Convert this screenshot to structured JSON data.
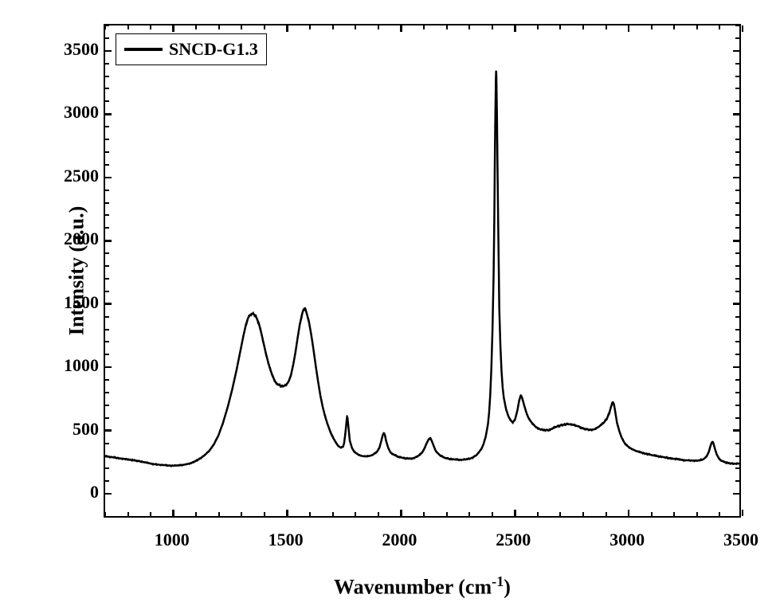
{
  "chart": {
    "type": "line",
    "background_color": "#ffffff",
    "line_color": "#000000",
    "line_width": 2.5,
    "border_color": "#000000",
    "border_width": 2.5,
    "x_axis": {
      "title": "Wavenumber (cm⁻¹)",
      "title_plain": "Wavenumber (cm",
      "title_sup": "-1",
      "title_close": ")",
      "title_fontsize": 26,
      "label_fontsize": 22,
      "min": 700,
      "max": 3500,
      "major_ticks": [
        1000,
        1500,
        2000,
        2500,
        3000,
        3500
      ],
      "minor_tick_step": 100,
      "tick_direction": "in"
    },
    "y_axis": {
      "title": "Intensity (a.u.)",
      "title_fontsize": 26,
      "label_fontsize": 22,
      "min": -200,
      "max": 3700,
      "major_ticks": [
        0,
        500,
        1000,
        1500,
        2000,
        2500,
        3000,
        3500
      ],
      "minor_tick_step": 100,
      "tick_direction": "in"
    },
    "legend": {
      "text": "SNCD-G1.3",
      "fontsize": 22,
      "position": "top-left",
      "line_sample_width": 48,
      "line_sample_thickness": 4,
      "border": true
    },
    "series": [
      {
        "name": "SNCD-G1.3",
        "color": "#000000",
        "data": [
          [
            700,
            275
          ],
          [
            720,
            270
          ],
          [
            740,
            265
          ],
          [
            760,
            260
          ],
          [
            780,
            255
          ],
          [
            800,
            250
          ],
          [
            820,
            245
          ],
          [
            840,
            240
          ],
          [
            860,
            232
          ],
          [
            880,
            225
          ],
          [
            900,
            218
          ],
          [
            920,
            212
          ],
          [
            940,
            208
          ],
          [
            960,
            205
          ],
          [
            980,
            202
          ],
          [
            1000,
            200
          ],
          [
            1020,
            202
          ],
          [
            1040,
            205
          ],
          [
            1060,
            212
          ],
          [
            1080,
            222
          ],
          [
            1100,
            238
          ],
          [
            1120,
            258
          ],
          [
            1140,
            285
          ],
          [
            1160,
            320
          ],
          [
            1180,
            370
          ],
          [
            1200,
            440
          ],
          [
            1220,
            540
          ],
          [
            1240,
            660
          ],
          [
            1260,
            800
          ],
          [
            1280,
            960
          ],
          [
            1290,
            1050
          ],
          [
            1300,
            1140
          ],
          [
            1310,
            1230
          ],
          [
            1320,
            1310
          ],
          [
            1330,
            1370
          ],
          [
            1340,
            1400
          ],
          [
            1350,
            1410
          ],
          [
            1360,
            1400
          ],
          [
            1370,
            1370
          ],
          [
            1380,
            1320
          ],
          [
            1390,
            1250
          ],
          [
            1400,
            1170
          ],
          [
            1410,
            1090
          ],
          [
            1420,
            1020
          ],
          [
            1430,
            960
          ],
          [
            1440,
            910
          ],
          [
            1450,
            870
          ],
          [
            1460,
            850
          ],
          [
            1470,
            840
          ],
          [
            1480,
            830
          ],
          [
            1490,
            835
          ],
          [
            1500,
            845
          ],
          [
            1510,
            870
          ],
          [
            1520,
            920
          ],
          [
            1530,
            1000
          ],
          [
            1540,
            1100
          ],
          [
            1550,
            1220
          ],
          [
            1560,
            1330
          ],
          [
            1570,
            1410
          ],
          [
            1575,
            1440
          ],
          [
            1580,
            1450
          ],
          [
            1585,
            1440
          ],
          [
            1590,
            1410
          ],
          [
            1600,
            1340
          ],
          [
            1610,
            1240
          ],
          [
            1620,
            1120
          ],
          [
            1630,
            990
          ],
          [
            1640,
            870
          ],
          [
            1650,
            760
          ],
          [
            1660,
            670
          ],
          [
            1670,
            600
          ],
          [
            1680,
            540
          ],
          [
            1690,
            490
          ],
          [
            1700,
            445
          ],
          [
            1710,
            410
          ],
          [
            1720,
            380
          ],
          [
            1730,
            355
          ],
          [
            1740,
            345
          ],
          [
            1750,
            350
          ],
          [
            1755,
            380
          ],
          [
            1760,
            450
          ],
          [
            1765,
            540
          ],
          [
            1768,
            590
          ],
          [
            1770,
            580
          ],
          [
            1775,
            490
          ],
          [
            1780,
            400
          ],
          [
            1790,
            340
          ],
          [
            1800,
            310
          ],
          [
            1820,
            285
          ],
          [
            1840,
            275
          ],
          [
            1860,
            275
          ],
          [
            1880,
            285
          ],
          [
            1900,
            310
          ],
          [
            1910,
            340
          ],
          [
            1918,
            390
          ],
          [
            1925,
            440
          ],
          [
            1930,
            460
          ],
          [
            1935,
            445
          ],
          [
            1940,
            400
          ],
          [
            1950,
            340
          ],
          [
            1960,
            305
          ],
          [
            1980,
            282
          ],
          [
            2000,
            268
          ],
          [
            2020,
            260
          ],
          [
            2040,
            256
          ],
          [
            2060,
            260
          ],
          [
            2080,
            275
          ],
          [
            2100,
            305
          ],
          [
            2110,
            340
          ],
          [
            2120,
            380
          ],
          [
            2128,
            410
          ],
          [
            2135,
            420
          ],
          [
            2140,
            405
          ],
          [
            2150,
            360
          ],
          [
            2160,
            315
          ],
          [
            2180,
            280
          ],
          [
            2200,
            262
          ],
          [
            2220,
            255
          ],
          [
            2240,
            250
          ],
          [
            2260,
            248
          ],
          [
            2280,
            248
          ],
          [
            2300,
            252
          ],
          [
            2320,
            262
          ],
          [
            2340,
            285
          ],
          [
            2360,
            330
          ],
          [
            2370,
            370
          ],
          [
            2380,
            430
          ],
          [
            2390,
            530
          ],
          [
            2395,
            620
          ],
          [
            2400,
            760
          ],
          [
            2405,
            970
          ],
          [
            2410,
            1280
          ],
          [
            2415,
            1720
          ],
          [
            2418,
            2150
          ],
          [
            2420,
            2550
          ],
          [
            2422,
            2900
          ],
          [
            2424,
            3150
          ],
          [
            2425,
            3280
          ],
          [
            2426,
            3335
          ],
          [
            2427,
            3310
          ],
          [
            2428,
            3200
          ],
          [
            2430,
            2950
          ],
          [
            2432,
            2600
          ],
          [
            2435,
            2150
          ],
          [
            2438,
            1750
          ],
          [
            2440,
            1450
          ],
          [
            2445,
            1150
          ],
          [
            2450,
            950
          ],
          [
            2455,
            820
          ],
          [
            2460,
            740
          ],
          [
            2470,
            650
          ],
          [
            2480,
            595
          ],
          [
            2490,
            560
          ],
          [
            2500,
            545
          ],
          [
            2510,
            570
          ],
          [
            2520,
            640
          ],
          [
            2528,
            720
          ],
          [
            2535,
            760
          ],
          [
            2540,
            745
          ],
          [
            2550,
            680
          ],
          [
            2560,
            620
          ],
          [
            2570,
            575
          ],
          [
            2580,
            550
          ],
          [
            2600,
            510
          ],
          [
            2620,
            490
          ],
          [
            2640,
            482
          ],
          [
            2660,
            485
          ],
          [
            2680,
            500
          ],
          [
            2700,
            515
          ],
          [
            2720,
            525
          ],
          [
            2740,
            530
          ],
          [
            2760,
            528
          ],
          [
            2780,
            518
          ],
          [
            2800,
            505
          ],
          [
            2820,
            492
          ],
          [
            2840,
            485
          ],
          [
            2860,
            490
          ],
          [
            2880,
            510
          ],
          [
            2900,
            540
          ],
          [
            2915,
            575
          ],
          [
            2925,
            615
          ],
          [
            2932,
            660
          ],
          [
            2938,
            695
          ],
          [
            2942,
            705
          ],
          [
            2946,
            690
          ],
          [
            2950,
            650
          ],
          [
            2955,
            595
          ],
          [
            2960,
            540
          ],
          [
            2970,
            475
          ],
          [
            2980,
            425
          ],
          [
            2990,
            390
          ],
          [
            3000,
            365
          ],
          [
            3020,
            338
          ],
          [
            3040,
            320
          ],
          [
            3060,
            308
          ],
          [
            3080,
            298
          ],
          [
            3100,
            290
          ],
          [
            3120,
            282
          ],
          [
            3140,
            275
          ],
          [
            3160,
            270
          ],
          [
            3180,
            264
          ],
          [
            3200,
            258
          ],
          [
            3220,
            253
          ],
          [
            3240,
            248
          ],
          [
            3260,
            244
          ],
          [
            3280,
            242
          ],
          [
            3300,
            240
          ],
          [
            3320,
            242
          ],
          [
            3340,
            250
          ],
          [
            3355,
            272
          ],
          [
            3365,
            310
          ],
          [
            3372,
            355
          ],
          [
            3378,
            385
          ],
          [
            3382,
            390
          ],
          [
            3386,
            375
          ],
          [
            3392,
            335
          ],
          [
            3400,
            290
          ],
          [
            3410,
            258
          ],
          [
            3420,
            240
          ],
          [
            3440,
            225
          ],
          [
            3460,
            218
          ],
          [
            3480,
            216
          ],
          [
            3500,
            218
          ]
        ]
      }
    ]
  }
}
